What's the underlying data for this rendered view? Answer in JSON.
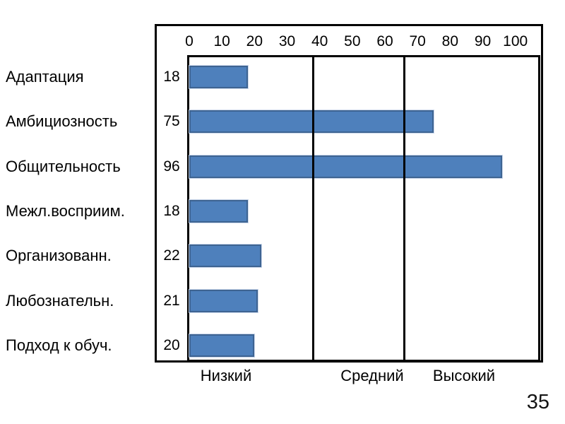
{
  "slide_number": "35",
  "chart_data": {
    "type": "bar",
    "orientation": "horizontal",
    "title": "",
    "categories": [
      "Адаптация",
      "Амбициозность",
      "Общительность",
      "Межл.восприим.",
      "Организованн.",
      "Любознательн.",
      "Подход к обуч."
    ],
    "values": [
      18,
      75,
      96,
      18,
      22,
      21,
      20
    ],
    "value_labels": [
      "18",
      "75",
      "96",
      "18",
      "22",
      "21",
      "20"
    ],
    "x_ticks": [
      0,
      10,
      20,
      30,
      40,
      50,
      60,
      70,
      80,
      90,
      100
    ],
    "xlim": [
      0,
      107
    ],
    "zone_dividers": [
      38,
      66
    ],
    "zone_labels": [
      "Низкий",
      "Средний",
      "Высокий"
    ],
    "legend": "none",
    "grid": "zone-dividers-only",
    "bar_color": "#4E80BC",
    "bar_border_color": "#3E6492",
    "axis_color": "#000000"
  }
}
